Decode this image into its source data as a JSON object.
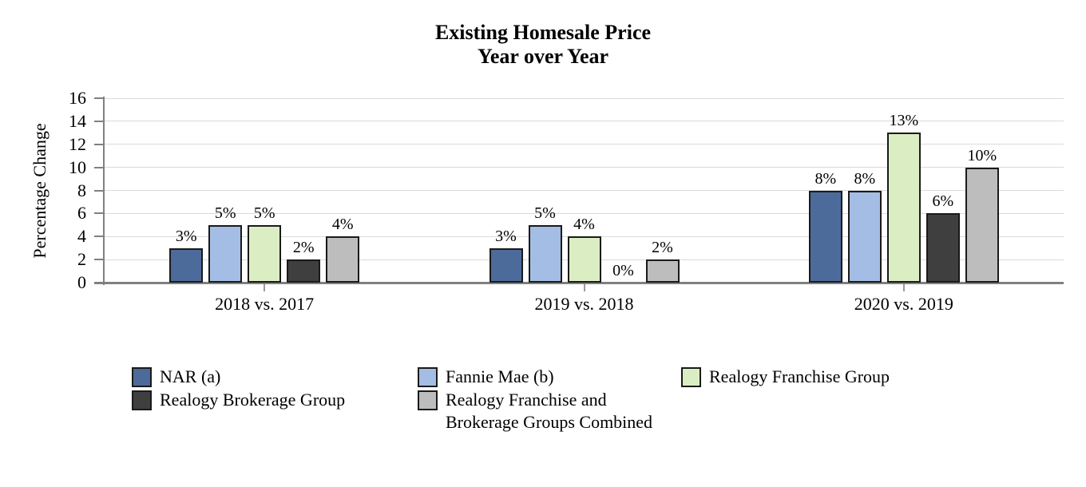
{
  "chart_data": {
    "type": "bar",
    "title": "Existing Homesale Price",
    "subtitle": "Year over Year",
    "ylabel": "Percentage Change",
    "xlabel": "",
    "ylim": [
      0,
      16
    ],
    "yticks": [
      0,
      2,
      4,
      6,
      8,
      10,
      12,
      14,
      16
    ],
    "grid": true,
    "legend_position": "bottom",
    "categories": [
      "2018 vs. 2017",
      "2019 vs. 2018",
      "2020 vs. 2019"
    ],
    "series": [
      {
        "name": "NAR (a)",
        "color": "#4C6B9A",
        "values": [
          3,
          3,
          8
        ],
        "data_labels": [
          "3%",
          "3%",
          "8%"
        ]
      },
      {
        "name": "Fannie Mae (b)",
        "color": "#A3BDE5",
        "values": [
          5,
          5,
          8
        ],
        "data_labels": [
          "5%",
          "5%",
          "8%"
        ]
      },
      {
        "name": "Realogy Franchise Group",
        "color": "#DBEEC3",
        "values": [
          5,
          4,
          13
        ],
        "data_labels": [
          "5%",
          "4%",
          "13%"
        ]
      },
      {
        "name": "Realogy Brokerage Group",
        "color": "#3F3F3F",
        "values": [
          2,
          0,
          6
        ],
        "data_labels": [
          "2%",
          "0%",
          "6%"
        ]
      },
      {
        "name": "Realogy Franchise and Brokerage Groups Combined",
        "color": "#BDBDBD",
        "values": [
          4,
          2,
          10
        ],
        "data_labels": [
          "4%",
          "2%",
          "10%"
        ]
      }
    ],
    "colors": {
      "bar_border": "#1A1A1A",
      "gridline": "#DADADA",
      "axis": "#808080",
      "text": "#000000"
    }
  }
}
